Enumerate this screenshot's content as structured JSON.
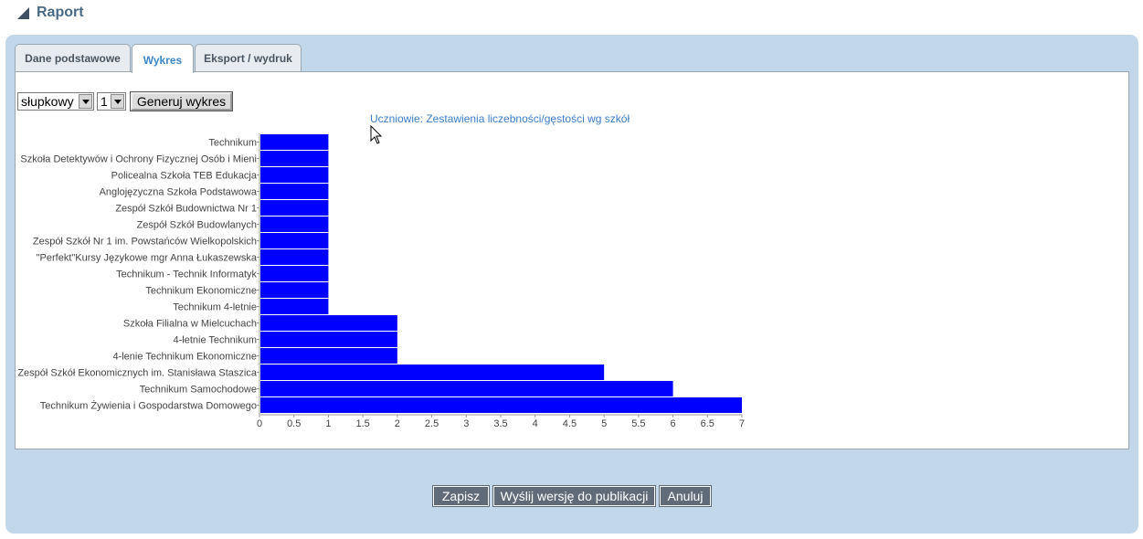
{
  "header": {
    "title": "Raport",
    "icon": "collapse-triangle-icon"
  },
  "tabs": [
    {
      "label": "Dane podstawowe",
      "active": false
    },
    {
      "label": "Wykres",
      "active": true
    },
    {
      "label": "Eksport / wydruk",
      "active": false
    }
  ],
  "controls": {
    "chart_type_selected": "słupkowy",
    "series_selected": "1",
    "generate_label": "Generuj wykres"
  },
  "colors": {
    "bar": "#0000ff",
    "title": "#3b7dc8",
    "panel": "#c3d7ea",
    "button": "#5f6b78"
  },
  "chart_data": {
    "type": "bar",
    "orientation": "horizontal",
    "title": "Uczniowie: Zestawienia liczebności/gęstości wg szkół",
    "categories": [
      "Technikum",
      "Szkoła Detektywów i Ochrony Fizycznej Osób i Mieni",
      "Policealna Szkoła TEB Edukacja",
      "Anglojęzyczna Szkoła Podstawowa",
      "Zespół Szkół Budownictwa Nr 1",
      "Zespół Szkół Budowlanych",
      "Zespół Szkół Nr 1 im. Powstańców Wielkopolskich",
      "\"Perfekt\"Kursy Językowe mgr Anna Łukaszewska",
      "Technikum - Technik Informatyk",
      "Technikum Ekonomiczne",
      "Technikum 4-letnie",
      "Szkoła Filialna w Mielcuchach",
      "4-letnie Technikum",
      "4-lenie Technikum Ekonomiczne",
      "Zespół Szkół Ekonomicznych im. Stanisława Staszica",
      "Technikum Samochodowe",
      "Technikum Żywienia i Gospodarstwa Domowego"
    ],
    "values": [
      1,
      1,
      1,
      1,
      1,
      1,
      1,
      1,
      1,
      1,
      1,
      2,
      2,
      2,
      5,
      6,
      7
    ],
    "xlim": [
      0,
      7
    ],
    "xticks": [
      "0",
      "0.5",
      "1",
      "1.5",
      "2",
      "2.5",
      "3",
      "3.5",
      "4",
      "4.5",
      "5",
      "5.5",
      "6",
      "6.5",
      "7"
    ],
    "grid": false,
    "legend": "none"
  },
  "footer": {
    "save_label": "Zapisz",
    "publish_label": "Wyślij wersję do publikacji",
    "cancel_label": "Anuluj"
  }
}
